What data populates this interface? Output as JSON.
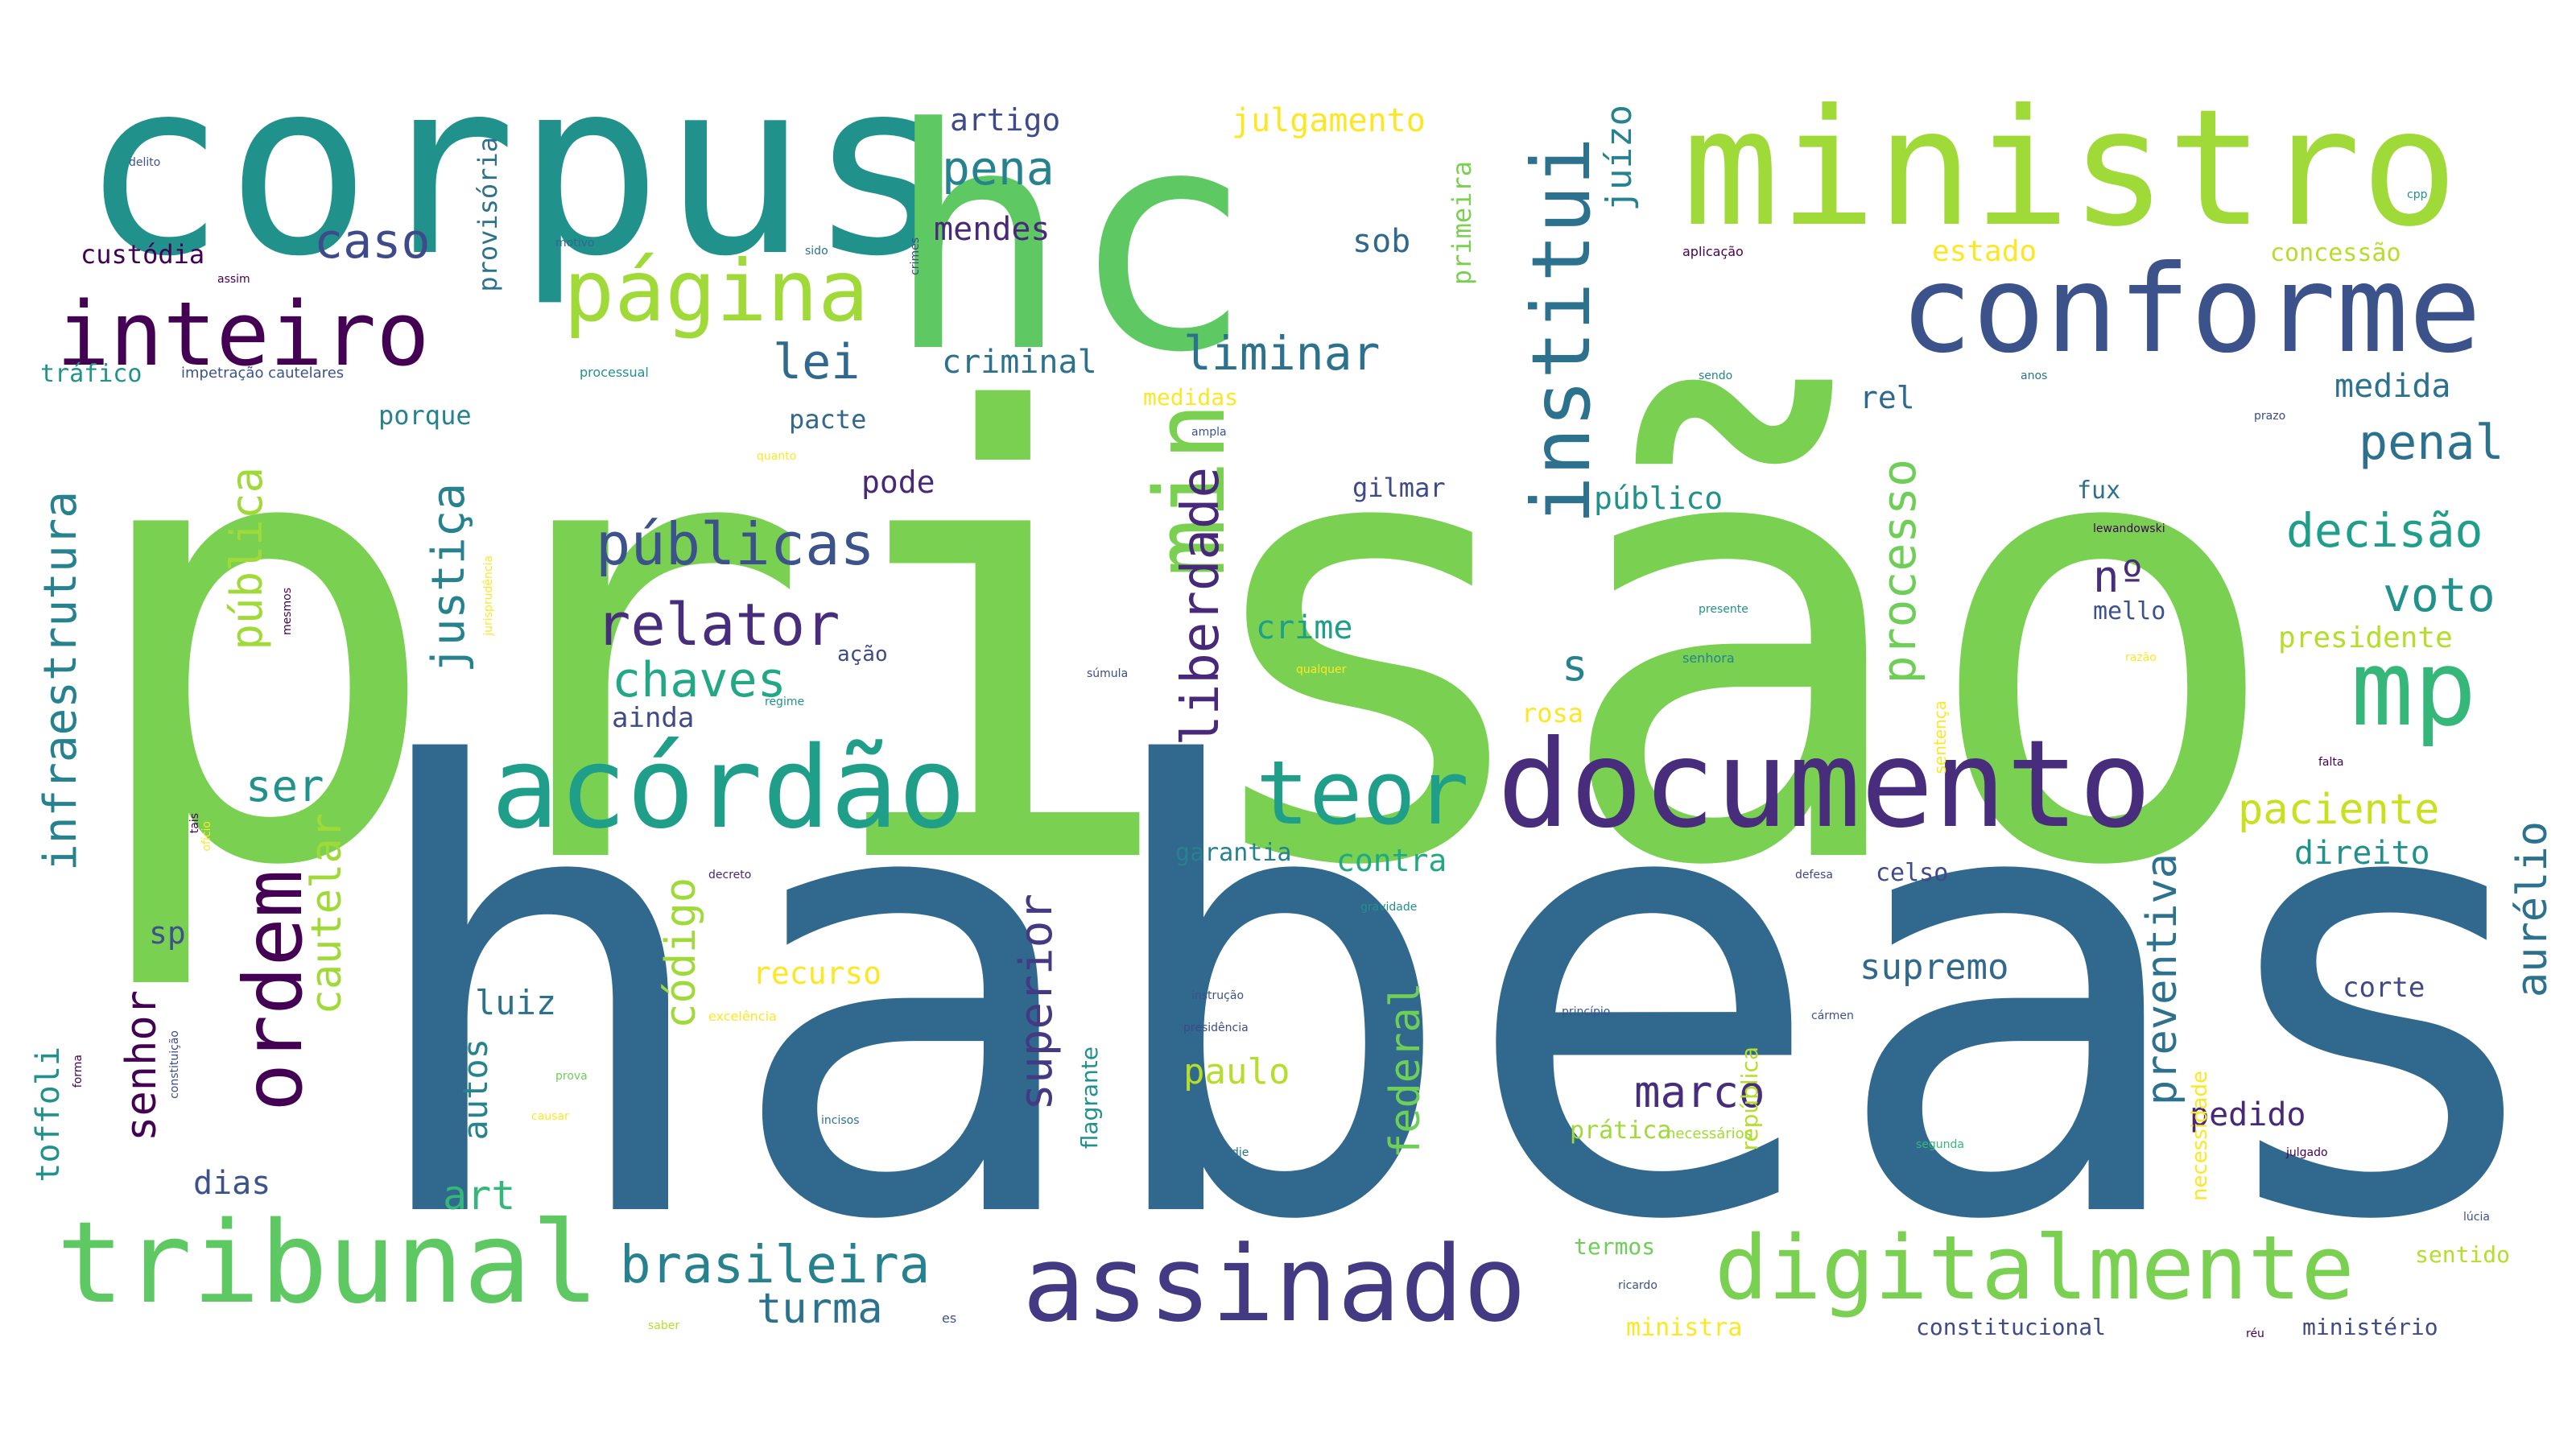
{
  "colors": {
    "background": "#ffffff",
    "palette": [
      "#440154",
      "#3b528b",
      "#21918c",
      "#5ec962",
      "#fde725",
      "#31688e",
      "#7ad151",
      "#2c728e",
      "#1f9e89",
      "#a0da39"
    ]
  },
  "words": [
    {
      "text": "prisão",
      "color": "#7ad151",
      "size": "xxl"
    },
    {
      "text": "habeas",
      "color": "#31688e",
      "size": "xxl"
    },
    {
      "text": "corpus",
      "color": "#21918c",
      "size": "xl"
    },
    {
      "text": "hc",
      "color": "#5ec962",
      "size": "xl"
    },
    {
      "text": "ministro",
      "color": "#a0da39",
      "size": "l"
    },
    {
      "text": "conforme",
      "color": "#3b528b",
      "size": "l"
    },
    {
      "text": "documento",
      "color": "#472d7b",
      "size": "l"
    },
    {
      "text": "acórdão",
      "color": "#1f9e89",
      "size": "l"
    },
    {
      "text": "tribunal",
      "color": "#5ec962",
      "size": "l"
    },
    {
      "text": "assinado",
      "color": "#443a83",
      "size": "l"
    },
    {
      "text": "digitalmente",
      "color": "#7ad151",
      "size": "l"
    },
    {
      "text": "página",
      "color": "#a0da39",
      "size": "m"
    },
    {
      "text": "inteiro",
      "color": "#440154",
      "size": "m"
    },
    {
      "text": "min",
      "color": "#7ad151",
      "size": "m"
    },
    {
      "text": "institui",
      "color": "#2c728e",
      "size": "m"
    },
    {
      "text": "mp",
      "color": "#35b779",
      "size": "m"
    },
    {
      "text": "teor",
      "color": "#1f9e89",
      "size": "m"
    },
    {
      "text": "ordem",
      "color": "#440154",
      "size": "m"
    },
    {
      "text": "caso",
      "color": "#3e4a89",
      "size": "s"
    },
    {
      "text": "pena",
      "color": "#26828e",
      "size": "s"
    },
    {
      "text": "lei",
      "color": "#31688e",
      "size": "s"
    },
    {
      "text": "liminar",
      "color": "#2c728e",
      "size": "s"
    },
    {
      "text": "públicas",
      "color": "#3b528b",
      "size": "s"
    },
    {
      "text": "relator",
      "color": "#472d7b",
      "size": "s"
    },
    {
      "text": "chaves",
      "color": "#22a884",
      "size": "s"
    },
    {
      "text": "liberdade",
      "color": "#482878",
      "size": "s"
    },
    {
      "text": "processo",
      "color": "#6ece58",
      "size": "s"
    },
    {
      "text": "penal",
      "color": "#2c728e",
      "size": "s"
    },
    {
      "text": "decisão",
      "color": "#1f9e89",
      "size": "s"
    },
    {
      "text": "voto",
      "color": "#21918c",
      "size": "s"
    },
    {
      "text": "nº",
      "color": "#472d7b",
      "size": "s"
    },
    {
      "text": "infraestrutura",
      "color": "#26828e",
      "size": "s"
    },
    {
      "text": "pública",
      "color": "#a0da39",
      "size": "s"
    },
    {
      "text": "justiça",
      "color": "#26828e",
      "size": "s"
    },
    {
      "text": "juízo",
      "color": "#26828e",
      "size": "s"
    },
    {
      "text": "julgamento",
      "color": "#fde725",
      "size": "xs"
    },
    {
      "text": "artigo",
      "color": "#3e4a89",
      "size": "xs"
    },
    {
      "text": "mendes",
      "color": "#482878",
      "size": "xs"
    },
    {
      "text": "sob",
      "color": "#31688e",
      "size": "xs"
    },
    {
      "text": "estado",
      "color": "#fde725",
      "size": "xs"
    },
    {
      "text": "concessão",
      "color": "#b5de2b",
      "size": "xs"
    },
    {
      "text": "custódia",
      "color": "#440154",
      "size": "xs"
    },
    {
      "text": "provisória",
      "color": "#2c728e",
      "size": "xs"
    },
    {
      "text": "tráfico",
      "color": "#21918c",
      "size": "xs"
    },
    {
      "text": "criminal",
      "color": "#2c728e",
      "size": "xs"
    },
    {
      "text": "primeira",
      "color": "#7ad151",
      "size": "xs"
    },
    {
      "text": "porque",
      "color": "#26828e",
      "size": "xs"
    },
    {
      "text": "pacte",
      "color": "#31688e",
      "size": "xs"
    },
    {
      "text": "pode",
      "color": "#482878",
      "size": "xs"
    },
    {
      "text": "gilmar",
      "color": "#3e4a89",
      "size": "xs"
    },
    {
      "text": "rel",
      "color": "#31688e",
      "size": "xs"
    },
    {
      "text": "medida",
      "color": "#2c728e",
      "size": "xs"
    },
    {
      "text": "público",
      "color": "#21918c",
      "size": "xs"
    },
    {
      "text": "fux",
      "color": "#2c728e",
      "size": "xs"
    },
    {
      "text": "mello",
      "color": "#3b528b",
      "size": "xs"
    },
    {
      "text": "presidente",
      "color": "#b5de2b",
      "size": "xs"
    },
    {
      "text": "crime",
      "color": "#1f9e89",
      "size": "xs"
    },
    {
      "text": "s",
      "color": "#26828e",
      "size": "s"
    },
    {
      "text": "ação",
      "color": "#3e4a89",
      "size": "xs"
    },
    {
      "text": "ainda",
      "color": "#3e4a89",
      "size": "xs"
    },
    {
      "text": "rosa",
      "color": "#fde725",
      "size": "xs"
    },
    {
      "text": "ser",
      "color": "#21918c",
      "size": "s"
    },
    {
      "text": "cautelar",
      "color": "#a0da39",
      "size": "s"
    },
    {
      "text": "senhor",
      "color": "#440154",
      "size": "s"
    },
    {
      "text": "sp",
      "color": "#3b528b",
      "size": "xs"
    },
    {
      "text": "código",
      "color": "#a0da39",
      "size": "s"
    },
    {
      "text": "superior",
      "color": "#443a83",
      "size": "s"
    },
    {
      "text": "recurso",
      "color": "#fde725",
      "size": "xs"
    },
    {
      "text": "contra",
      "color": "#22a884",
      "size": "xs"
    },
    {
      "text": "garantia",
      "color": "#26828e",
      "size": "xs"
    },
    {
      "text": "federal",
      "color": "#6ece58",
      "size": "s"
    },
    {
      "text": "preventiva",
      "color": "#2c728e",
      "size": "s"
    },
    {
      "text": "paciente",
      "color": "#c8e020",
      "size": "s"
    },
    {
      "text": "direito",
      "color": "#21918c",
      "size": "xs"
    },
    {
      "text": "aurélio",
      "color": "#2c728e",
      "size": "s"
    },
    {
      "text": "supremo",
      "color": "#31688e",
      "size": "xs"
    },
    {
      "text": "corte",
      "color": "#3e4a89",
      "size": "xs"
    },
    {
      "text": "marco",
      "color": "#472d7b",
      "size": "s"
    },
    {
      "text": "paulo",
      "color": "#b5de2b",
      "size": "xs"
    },
    {
      "text": "luiz",
      "color": "#2c728e",
      "size": "xs"
    },
    {
      "text": "autos",
      "color": "#26828e",
      "size": "xs"
    },
    {
      "text": "art",
      "color": "#35b779",
      "size": "s"
    },
    {
      "text": "dias",
      "color": "#3b528b",
      "size": "xs"
    },
    {
      "text": "toffoli",
      "color": "#21918c",
      "size": "xs"
    },
    {
      "text": "pedido",
      "color": "#482878",
      "size": "xs"
    },
    {
      "text": "brasileira",
      "color": "#26828e",
      "size": "s"
    },
    {
      "text": "turma",
      "color": "#2c728e",
      "size": "s"
    },
    {
      "text": "celso",
      "color": "#3e4a89",
      "size": "xs"
    },
    {
      "text": "termos",
      "color": "#6ece58",
      "size": "xxs"
    },
    {
      "text": "sentido",
      "color": "#b5de2b",
      "size": "xxs"
    },
    {
      "text": "constitucional",
      "color": "#3e4a89",
      "size": "xxs"
    },
    {
      "text": "ministério",
      "color": "#3e4a89",
      "size": "xxs"
    },
    {
      "text": "ministra",
      "color": "#fde725",
      "size": "xxs"
    },
    {
      "text": "prática",
      "color": "#a0da39",
      "size": "xxs"
    },
    {
      "text": "medidas",
      "color": "#fde725",
      "size": "xxs"
    },
    {
      "text": "delito",
      "color": "#3b528b",
      "size": "tiny"
    },
    {
      "text": "assim",
      "color": "#440154",
      "size": "tiny"
    },
    {
      "text": "motivo",
      "color": "#31688e",
      "size": "tiny"
    },
    {
      "text": "aplicação",
      "color": "#440154",
      "size": "tiny"
    },
    {
      "text": "cpp",
      "color": "#21918c",
      "size": "tiny"
    },
    {
      "text": "sido",
      "color": "#2c728e",
      "size": "tiny"
    },
    {
      "text": "crimes",
      "color": "#3e4a89",
      "size": "tiny"
    },
    {
      "text": "impetração cautelares",
      "color": "#3b528b",
      "size": "tiny"
    },
    {
      "text": "processual",
      "color": "#21918c",
      "size": "tiny"
    },
    {
      "text": "sendo",
      "color": "#26828e",
      "size": "tiny"
    },
    {
      "text": "anos",
      "color": "#2c728e",
      "size": "tiny"
    },
    {
      "text": "prazo",
      "color": "#3e4a89",
      "size": "tiny"
    },
    {
      "text": "ampla",
      "color": "#3b528b",
      "size": "tiny"
    },
    {
      "text": "quanto",
      "color": "#fde725",
      "size": "tiny"
    },
    {
      "text": "lewandowski",
      "color": "#440154",
      "size": "tiny"
    },
    {
      "text": "presente",
      "color": "#21918c",
      "size": "tiny"
    },
    {
      "text": "senhora",
      "color": "#26828e",
      "size": "tiny"
    },
    {
      "text": "súmula",
      "color": "#3e4a89",
      "size": "tiny"
    },
    {
      "text": "qualquer",
      "color": "#fde725",
      "size": "tiny"
    },
    {
      "text": "razão",
      "color": "#fde725",
      "size": "tiny"
    },
    {
      "text": "regime",
      "color": "#21918c",
      "size": "tiny"
    },
    {
      "text": "falta",
      "color": "#440154",
      "size": "tiny"
    },
    {
      "text": "ofício",
      "color": "#fde725",
      "size": "tiny"
    },
    {
      "text": "decreto",
      "color": "#482878",
      "size": "tiny"
    },
    {
      "text": "gravidade",
      "color": "#21918c",
      "size": "tiny"
    },
    {
      "text": "defesa",
      "color": "#3e4a89",
      "size": "tiny"
    },
    {
      "text": "instrução",
      "color": "#3b528b",
      "size": "tiny"
    },
    {
      "text": "presidência",
      "color": "#3e4a89",
      "size": "tiny"
    },
    {
      "text": "princípio",
      "color": "#3b528b",
      "size": "tiny"
    },
    {
      "text": "excelência",
      "color": "#fde725",
      "size": "tiny"
    },
    {
      "text": "prova",
      "color": "#6ece58",
      "size": "tiny"
    },
    {
      "text": "causar",
      "color": "#fde725",
      "size": "tiny"
    },
    {
      "text": "jurisprudência",
      "color": "#fde725",
      "size": "tiny"
    },
    {
      "text": "constituição",
      "color": "#3e4a89",
      "size": "tiny"
    },
    {
      "text": "forma",
      "color": "#440154",
      "size": "tiny"
    },
    {
      "text": "incisos",
      "color": "#2c728e",
      "size": "tiny"
    },
    {
      "text": "dje",
      "color": "#2c728e",
      "size": "tiny"
    },
    {
      "text": "necessários",
      "color": "#a0da39",
      "size": "tiny"
    },
    {
      "text": "segunda",
      "color": "#35b779",
      "size": "tiny"
    },
    {
      "text": "julgado",
      "color": "#440154",
      "size": "tiny"
    },
    {
      "text": "ricardo",
      "color": "#3b528b",
      "size": "tiny"
    },
    {
      "text": "réu",
      "color": "#440154",
      "size": "tiny"
    },
    {
      "text": "lúcia",
      "color": "#3b528b",
      "size": "tiny"
    },
    {
      "text": "saber",
      "color": "#b5de2b",
      "size": "tiny"
    },
    {
      "text": "es",
      "color": "#3b528b",
      "size": "tiny"
    },
    {
      "text": "flagrante",
      "color": "#21918c",
      "size": "xxs"
    },
    {
      "text": "república",
      "color": "#b5de2b",
      "size": "xxs"
    },
    {
      "text": "sentença",
      "color": "#fde725",
      "size": "tiny"
    },
    {
      "text": "necessidade",
      "color": "#fde725",
      "size": "xxs"
    },
    {
      "text": "cármen",
      "color": "#3b528b",
      "size": "tiny"
    },
    {
      "text": "mesmos",
      "color": "#440154",
      "size": "tiny"
    },
    {
      "text": "tais",
      "color": "#440154",
      "size": "tiny"
    }
  ]
}
